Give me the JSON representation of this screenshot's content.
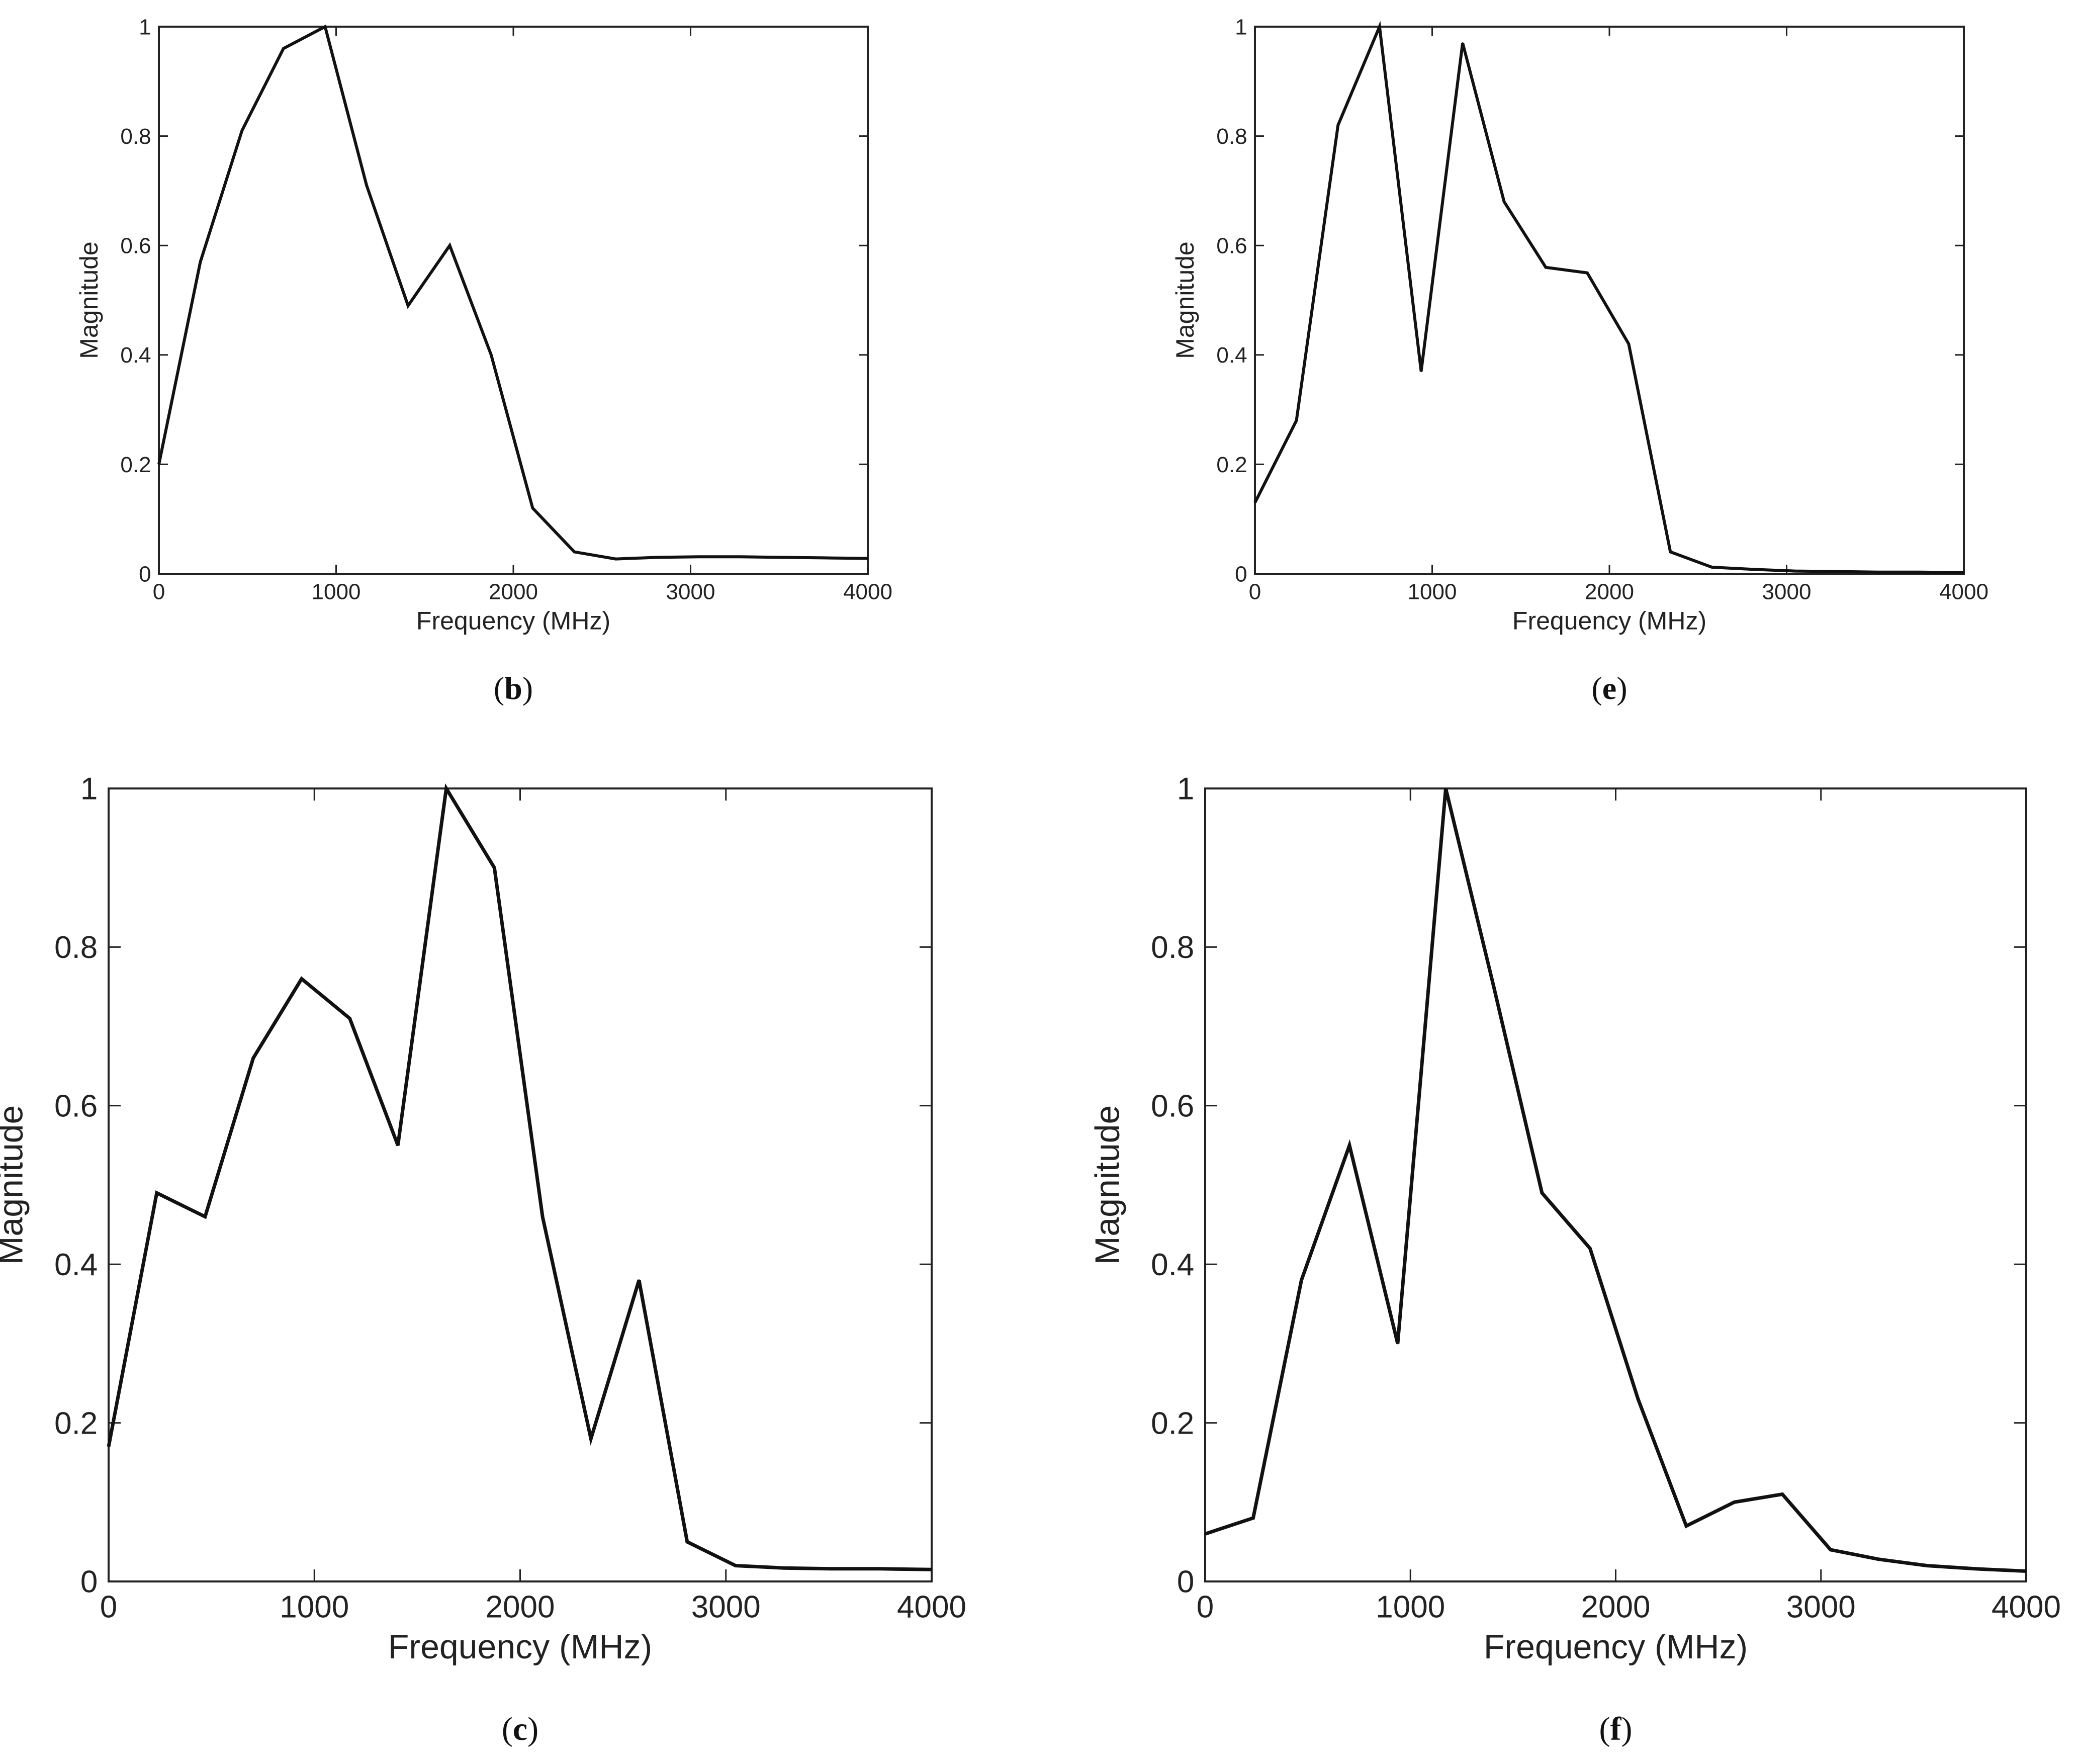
{
  "chart_data": [
    {
      "id": "b",
      "type": "line",
      "caption": "b",
      "xlabel": "Frequency (MHz)",
      "ylabel": "Magnitude",
      "xlim": [
        0,
        4000
      ],
      "ylim": [
        0,
        1
      ],
      "xticks": [
        "0",
        "1000",
        "2000",
        "3000",
        "4000"
      ],
      "yticks": [
        "0",
        "0.2",
        "0.4",
        "0.6",
        "0.8",
        "1"
      ],
      "x": [
        0,
        234,
        469,
        703,
        938,
        1172,
        1406,
        1641,
        1875,
        2109,
        2344,
        2578,
        2812,
        3047,
        3281,
        3516,
        3750,
        4000
      ],
      "values": [
        0.2,
        0.57,
        0.81,
        0.96,
        1.0,
        0.71,
        0.49,
        0.6,
        0.4,
        0.12,
        0.04,
        0.027,
        0.03,
        0.031,
        0.031,
        0.03,
        0.029,
        0.028
      ]
    },
    {
      "id": "e",
      "type": "line",
      "caption": "e",
      "xlabel": "Frequency (MHz)",
      "ylabel": "Magnitude",
      "xlim": [
        0,
        4000
      ],
      "ylim": [
        0,
        1
      ],
      "xticks": [
        "0",
        "1000",
        "2000",
        "3000",
        "4000"
      ],
      "yticks": [
        "0",
        "0.2",
        "0.4",
        "0.6",
        "0.8",
        "1"
      ],
      "x": [
        0,
        234,
        469,
        703,
        938,
        1172,
        1406,
        1641,
        1875,
        2109,
        2344,
        2578,
        2812,
        3047,
        3281,
        3516,
        3750,
        4000
      ],
      "values": [
        0.13,
        0.28,
        0.82,
        1.0,
        0.37,
        0.97,
        0.68,
        0.56,
        0.55,
        0.42,
        0.04,
        0.012,
        0.008,
        0.005,
        0.004,
        0.003,
        0.003,
        0.002
      ]
    },
    {
      "id": "c",
      "type": "line",
      "caption": "c",
      "xlabel": "Frequency (MHz)",
      "ylabel": "Magnitude",
      "xlim": [
        0,
        4000
      ],
      "ylim": [
        0,
        1
      ],
      "xticks": [
        "0",
        "1000",
        "2000",
        "3000",
        "4000"
      ],
      "yticks": [
        "0",
        "0.2",
        "0.4",
        "0.6",
        "0.8",
        "1"
      ],
      "x": [
        0,
        234,
        469,
        703,
        938,
        1172,
        1406,
        1641,
        1875,
        2109,
        2344,
        2578,
        2812,
        3047,
        3281,
        3516,
        3750,
        4000
      ],
      "values": [
        0.17,
        0.49,
        0.46,
        0.66,
        0.76,
        0.71,
        0.55,
        1.0,
        0.9,
        0.46,
        0.18,
        0.38,
        0.05,
        0.02,
        0.017,
        0.016,
        0.016,
        0.015
      ]
    },
    {
      "id": "f",
      "type": "line",
      "caption": "f",
      "xlabel": "Frequency (MHz)",
      "ylabel": "Magnitude",
      "xlim": [
        0,
        4000
      ],
      "ylim": [
        0,
        1
      ],
      "xticks": [
        "0",
        "1000",
        "2000",
        "3000",
        "4000"
      ],
      "yticks": [
        "0",
        "0.2",
        "0.4",
        "0.6",
        "0.8",
        "1"
      ],
      "x": [
        0,
        234,
        469,
        703,
        938,
        1172,
        1406,
        1641,
        1875,
        2109,
        2344,
        2578,
        2812,
        3047,
        3281,
        3516,
        3750,
        4000
      ],
      "values": [
        0.06,
        0.08,
        0.38,
        0.55,
        0.3,
        1.0,
        0.75,
        0.49,
        0.42,
        0.23,
        0.07,
        0.1,
        0.11,
        0.04,
        0.028,
        0.02,
        0.016,
        0.013
      ]
    }
  ],
  "colors": {
    "line": "#111111",
    "axis": "#222222",
    "background": "#ffffff"
  }
}
